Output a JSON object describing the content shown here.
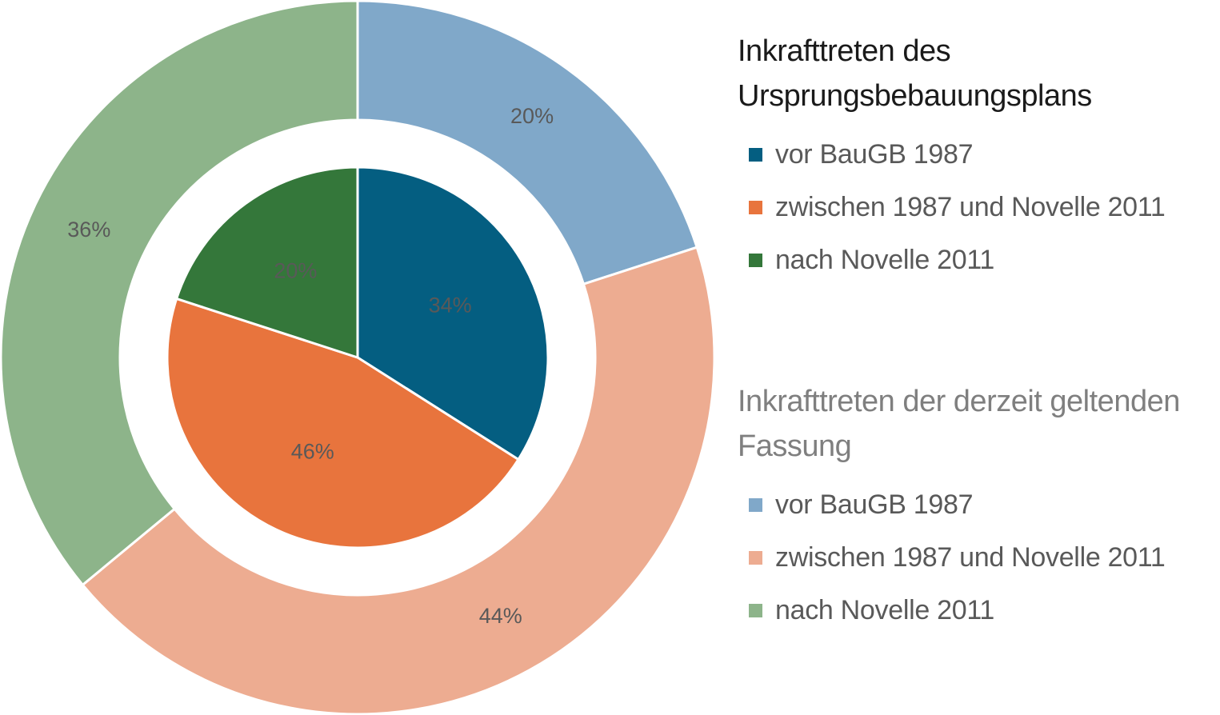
{
  "chart_data": {
    "type": "pie",
    "rings": [
      {
        "ring": "inner",
        "title": "Inkrafttreten des Ursprungsbebauungsplans",
        "categories": [
          "vor BauGB 1987",
          "zwischen 1987 und Novelle 2011",
          "nach Novelle 2011"
        ],
        "values": [
          34,
          46,
          20
        ],
        "labels": [
          "34%",
          "46%",
          "20%"
        ],
        "colors": [
          "#045e81",
          "#e8743d",
          "#34773a"
        ]
      },
      {
        "ring": "outer",
        "title": "Inkrafttreten der derzeit geltenden Fassung",
        "categories": [
          "vor BauGB 1987",
          "zwischen 1987 und Novelle 2011",
          "nach Novelle 2011"
        ],
        "values": [
          20,
          44,
          36
        ],
        "labels": [
          "20%",
          "44%",
          "36%"
        ],
        "colors": [
          "#80a8c9",
          "#edac91",
          "#8db48a"
        ]
      }
    ],
    "legend_position": "right"
  }
}
